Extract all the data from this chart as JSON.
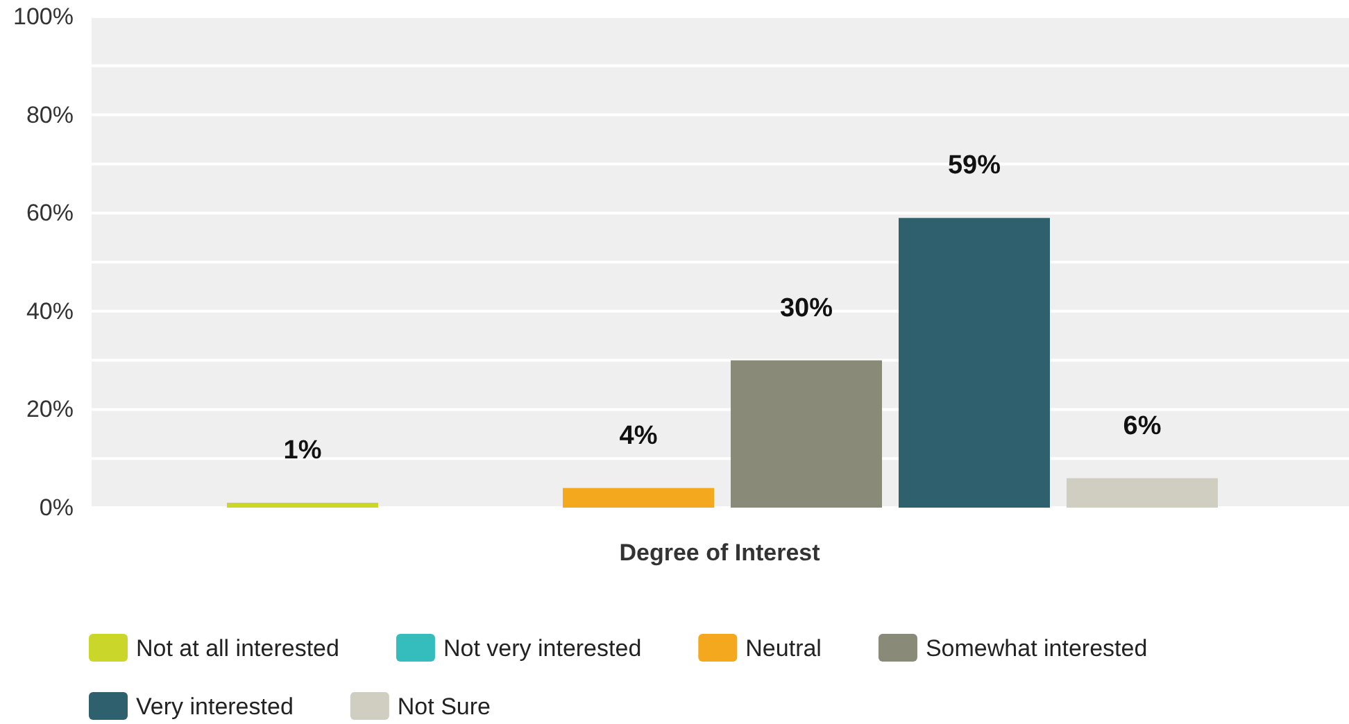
{
  "chart_data": {
    "type": "bar",
    "categories": [
      "Degree of Interest"
    ],
    "series": [
      {
        "name": "Not at all interested",
        "color": "#cbd62b",
        "values": [
          1
        ],
        "value_labels": [
          "1%"
        ]
      },
      {
        "name": "Not very interested",
        "color": "#35bcbc",
        "values": [
          0
        ],
        "value_labels": [
          null
        ]
      },
      {
        "name": "Neutral",
        "color": "#f4a81d",
        "values": [
          4
        ],
        "value_labels": [
          "4%"
        ]
      },
      {
        "name": "Somewhat interested",
        "color": "#8a8a78",
        "values": [
          30
        ],
        "value_labels": [
          "30%"
        ]
      },
      {
        "name": "Very interested",
        "color": "#2f606e",
        "values": [
          59
        ],
        "value_labels": [
          "59%"
        ]
      },
      {
        "name": "Not Sure",
        "color": "#d0cec0",
        "values": [
          6
        ],
        "value_labels": [
          "6%"
        ]
      }
    ],
    "ylim": [
      0,
      100
    ],
    "yticks": [
      {
        "value": 0,
        "label": "0%"
      },
      {
        "value": 10,
        "label": null
      },
      {
        "value": 20,
        "label": "20%"
      },
      {
        "value": 30,
        "label": null
      },
      {
        "value": 40,
        "label": "40%"
      },
      {
        "value": 50,
        "label": null
      },
      {
        "value": 60,
        "label": "60%"
      },
      {
        "value": 70,
        "label": null
      },
      {
        "value": 80,
        "label": "80%"
      },
      {
        "value": 90,
        "label": null
      },
      {
        "value": 100,
        "label": "100%"
      }
    ],
    "grid": true,
    "legend": "bottom"
  }
}
